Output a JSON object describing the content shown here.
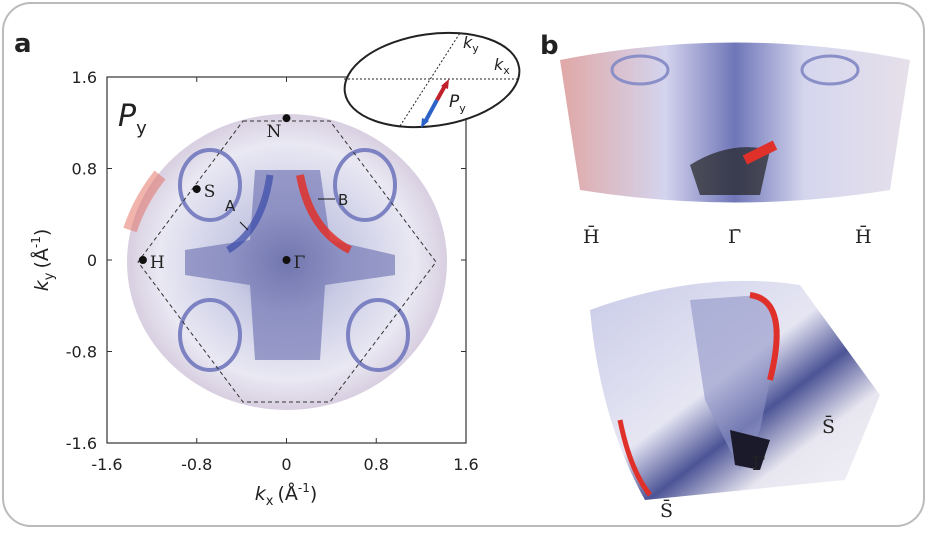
{
  "panel_a": {
    "label": "a",
    "polarization": "P",
    "polarization_sub": "y",
    "xlabel": {
      "k": "k",
      "sub": "x",
      "unit": "(Å",
      "sup": "-1",
      "close": ")"
    },
    "ylabel": {
      "k": "k",
      "sub": "y",
      "unit": "(Å",
      "sup": "-1",
      "close": ")"
    },
    "xlim": [
      -1.6,
      1.6
    ],
    "ylim": [
      -1.6,
      1.6
    ],
    "xticks": [
      -1.6,
      -0.8,
      0,
      0.8,
      1.6
    ],
    "yticks": [
      -1.6,
      -0.8,
      0,
      0.8,
      1.6
    ],
    "points": [
      {
        "label": "N",
        "x": 0,
        "y": 1.24
      },
      {
        "label": "S",
        "x": -0.8,
        "y": 0.62
      },
      {
        "label": "H",
        "x": -1.28,
        "y": 0
      },
      {
        "label": "Γ",
        "x": 0,
        "y": 0
      }
    ],
    "annotations": [
      "A",
      "B"
    ],
    "inset": {
      "ky": "k",
      "ky_sub": "y",
      "kx": "k",
      "kx_sub": "x",
      "p": "P",
      "p_sub": "y"
    }
  },
  "panel_b": {
    "label": "b",
    "top_labels": [
      "H̄",
      "Γ̄",
      "H̄"
    ],
    "bottom_labels": [
      "S̄",
      "Γ̄",
      "S̄"
    ]
  }
}
